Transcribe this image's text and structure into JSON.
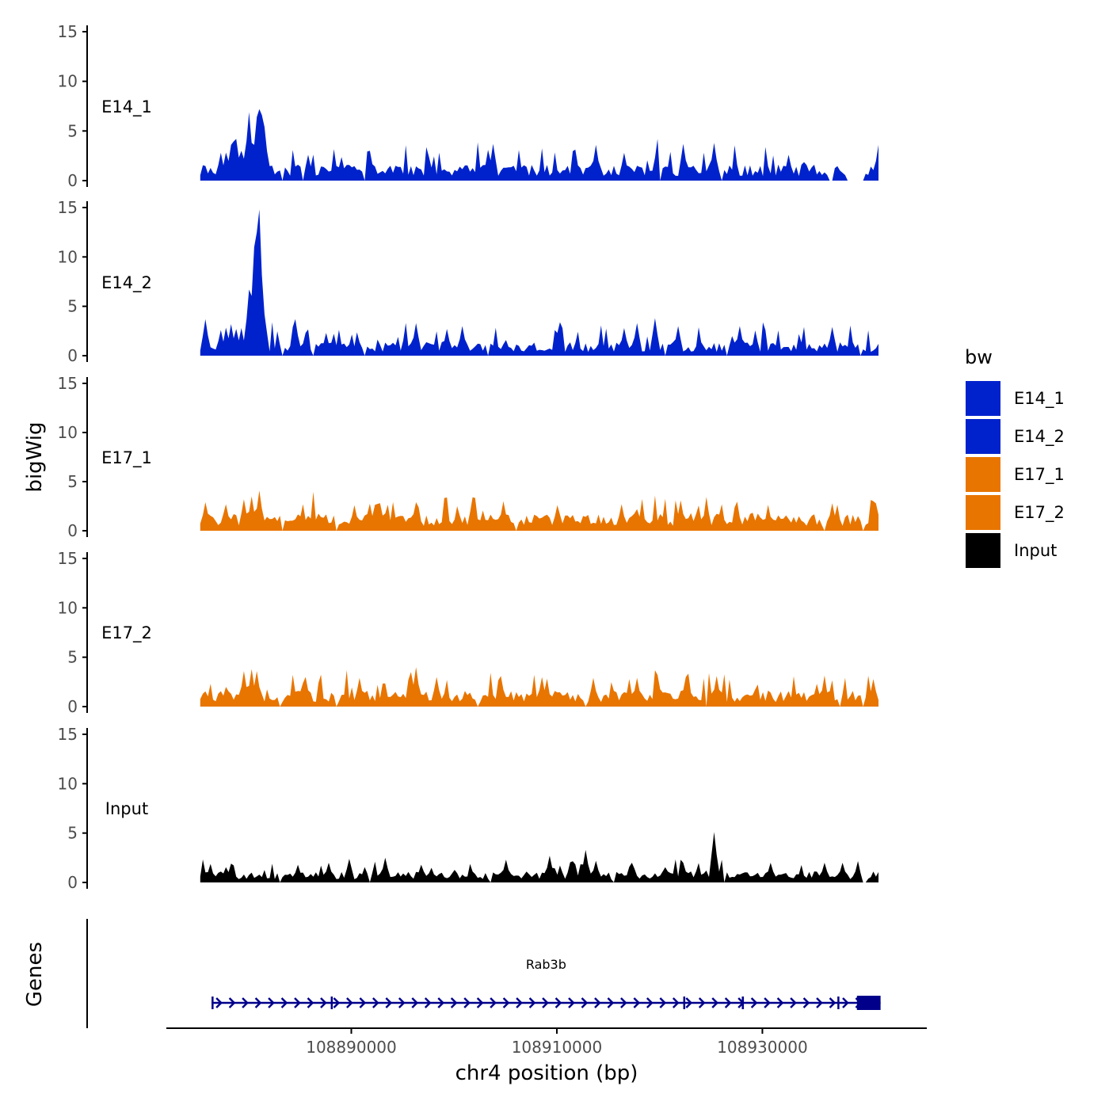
{
  "chart_data": {
    "type": "area",
    "ylabel": "bigWig",
    "xlabel": "chr4 position (bp)",
    "xlim": [
      108872000,
      108946000
    ],
    "region_start": 108875300,
    "region_end": 108941500,
    "ylim": [
      0,
      15
    ],
    "y_ticks": [
      0,
      5,
      10,
      15
    ],
    "x_ticks": [
      108890000,
      108910000,
      108930000
    ],
    "x_tick_labels": [
      "108890000",
      "108910000",
      "108930000"
    ],
    "bin_width_bp": 250,
    "legend": {
      "title": "bw",
      "position": "right",
      "entries": [
        {
          "label": "E14_1",
          "color": "#0022CC"
        },
        {
          "label": "E14_2",
          "color": "#0022CC"
        },
        {
          "label": "E17_1",
          "color": "#E87500"
        },
        {
          "label": "E17_2",
          "color": "#E87500"
        },
        {
          "label": "Input",
          "color": "#000000"
        }
      ]
    },
    "series": [
      {
        "name": "E14_1",
        "color": "#0022CC",
        "baseline": 1.3,
        "noise": 1.0,
        "gaps": [
          [
            108883150,
            108883400
          ],
          [
            108885100,
            108885300
          ],
          [
            108891100,
            108891300
          ],
          [
            108920000,
            108920150
          ],
          [
            108926000,
            108926200
          ],
          [
            108936400,
            108937000
          ],
          [
            108938300,
            108939800
          ]
        ],
        "peaks": [
          [
            108877400,
            2.8
          ],
          [
            108878200,
            3.6
          ],
          [
            108878700,
            4.2
          ],
          [
            108879200,
            3.0
          ],
          [
            108879700,
            4.0
          ],
          [
            108880100,
            6.9
          ],
          [
            108880500,
            3.6
          ],
          [
            108880800,
            6.4
          ],
          [
            108881000,
            7.2
          ],
          [
            108881250,
            6.6
          ],
          [
            108881500,
            5.4
          ],
          [
            108885700,
            2.6
          ],
          [
            108891900,
            3.0
          ],
          [
            108897500,
            2.4
          ],
          [
            108903900,
            3.7
          ],
          [
            108913900,
            3.6
          ],
          [
            108916500,
            2.8
          ],
          [
            108919900,
            4.2
          ],
          [
            108922400,
            3.7
          ],
          [
            108925200,
            3.8
          ],
          [
            108932600,
            2.6
          ],
          [
            108941300,
            3.6
          ]
        ]
      },
      {
        "name": "E14_2",
        "color": "#0022CC",
        "baseline": 1.1,
        "noise": 0.9,
        "gaps": [
          [
            108883150,
            108883400
          ],
          [
            108886150,
            108886350
          ],
          [
            108891150,
            108891350
          ],
          [
            108903300,
            108903500
          ],
          [
            108920500,
            108920700
          ],
          [
            108926400,
            108926600
          ],
          [
            108939400,
            108939700
          ]
        ],
        "peaks": [
          [
            108875750,
            3.7
          ],
          [
            108877400,
            2.6
          ],
          [
            108878300,
            3.2
          ],
          [
            108878900,
            2.7
          ],
          [
            108879400,
            2.8
          ],
          [
            108879950,
            6.7
          ],
          [
            108880300,
            6.0
          ],
          [
            108880550,
            11.0
          ],
          [
            108880750,
            12.5
          ],
          [
            108880950,
            14.8
          ],
          [
            108881200,
            7.1
          ],
          [
            108881600,
            4.2
          ],
          [
            108884500,
            3.7
          ],
          [
            108887500,
            2.3
          ],
          [
            108896300,
            3.3
          ],
          [
            108899200,
            2.7
          ],
          [
            108900800,
            3.0
          ],
          [
            108910000,
            2.3
          ],
          [
            108916500,
            2.8
          ],
          [
            108917800,
            3.3
          ],
          [
            108919600,
            3.8
          ],
          [
            108921700,
            3.0
          ],
          [
            108927800,
            3.0
          ],
          [
            108936900,
            2.9
          ]
        ]
      },
      {
        "name": "E17_1",
        "color": "#E87500",
        "baseline": 1.4,
        "noise": 0.9,
        "gaps": [
          [
            108883100,
            108883300
          ],
          [
            108888400,
            108888600
          ],
          [
            108906000,
            108906200
          ],
          [
            108935900,
            108936100
          ],
          [
            108939600,
            108939800
          ]
        ],
        "peaks": [
          [
            108875900,
            2.9
          ],
          [
            108877800,
            2.7
          ],
          [
            108879500,
            3.2
          ],
          [
            108880300,
            3.5
          ],
          [
            108881000,
            4.1
          ],
          [
            108890200,
            2.6
          ],
          [
            108892900,
            2.8
          ],
          [
            108896400,
            2.9
          ],
          [
            108901900,
            3.4
          ],
          [
            108904800,
            3.0
          ],
          [
            108910000,
            2.6
          ],
          [
            108916200,
            2.7
          ],
          [
            108922100,
            3.1
          ],
          [
            108924600,
            2.8
          ],
          [
            108936800,
            2.8
          ],
          [
            108940900,
            3.0
          ]
        ]
      },
      {
        "name": "E17_2",
        "color": "#E87500",
        "baseline": 1.3,
        "noise": 1.0,
        "gaps": [
          [
            108883000,
            108883200
          ],
          [
            108888500,
            108888700
          ],
          [
            108902200,
            108902400
          ],
          [
            108912700,
            108912900
          ],
          [
            108924500,
            108924700
          ],
          [
            108937400,
            108937600
          ],
          [
            108939700,
            108940000
          ]
        ],
        "peaks": [
          [
            108877800,
            2.0
          ],
          [
            108879600,
            3.6
          ],
          [
            108880400,
            3.8
          ],
          [
            108880800,
            3.6
          ],
          [
            108885600,
            3.0
          ],
          [
            108890700,
            2.9
          ],
          [
            108895700,
            3.5
          ],
          [
            108896200,
            4.0
          ],
          [
            108898400,
            3.0
          ],
          [
            108904500,
            3.1
          ],
          [
            108908500,
            3.0
          ],
          [
            108913500,
            2.9
          ],
          [
            108917900,
            2.9
          ],
          [
            108919900,
            3.2
          ],
          [
            108922600,
            3.0
          ],
          [
            108925600,
            3.1
          ],
          [
            108935200,
            2.3
          ],
          [
            108940700,
            2.8
          ]
        ]
      },
      {
        "name": "Input",
        "color": "#000000",
        "baseline": 0.9,
        "noise": 0.6,
        "gaps": [
          [
            108883000,
            108883200
          ],
          [
            108891600,
            108891800
          ],
          [
            108903500,
            108903700
          ],
          [
            108915500,
            108915650
          ],
          [
            108926300,
            108926500
          ],
          [
            108939700,
            108940200
          ]
        ],
        "peaks": [
          [
            108878200,
            1.9
          ],
          [
            108884700,
            1.8
          ],
          [
            108887700,
            2.0
          ],
          [
            108889800,
            2.4
          ],
          [
            108893300,
            2.5
          ],
          [
            108896800,
            1.8
          ],
          [
            108905000,
            2.3
          ],
          [
            108909400,
            2.7
          ],
          [
            108912800,
            3.3
          ],
          [
            108913700,
            2.2
          ],
          [
            108917400,
            2.0
          ],
          [
            108922400,
            2.0
          ],
          [
            108925400,
            5.1
          ],
          [
            108930800,
            2.0
          ],
          [
            108936000,
            2.0
          ],
          [
            108937800,
            2.0
          ]
        ]
      }
    ],
    "genes": [
      {
        "name": "Rab3b",
        "strand": "+",
        "color": "#00008B",
        "start": 108876400,
        "end": 108941500,
        "exons": [
          [
            108876400,
            108876550
          ],
          [
            108888000,
            108888150
          ],
          [
            108922300,
            108922400
          ],
          [
            108928000,
            108928200
          ],
          [
            108937300,
            108937400
          ],
          [
            108939200,
            108941500
          ]
        ]
      }
    ],
    "gene_track_label": "Genes"
  }
}
